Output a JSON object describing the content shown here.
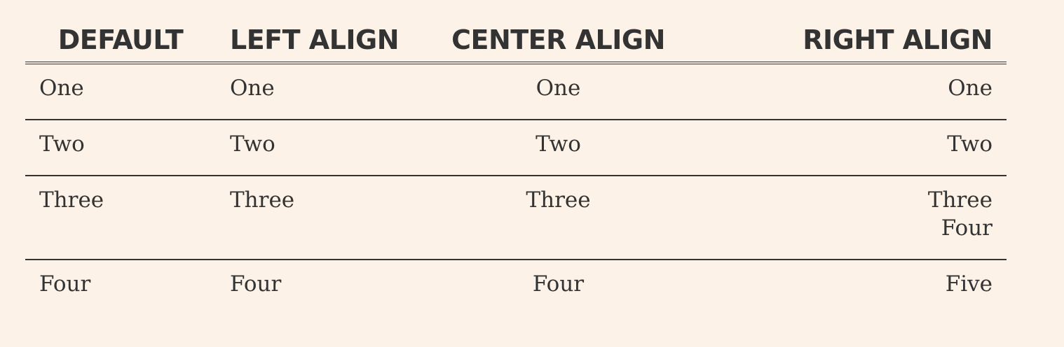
{
  "table": {
    "headers": [
      "DEFAULT",
      "LEFT ALIGN",
      "CENTER ALIGN",
      "RIGHT ALIGN"
    ],
    "rows": [
      {
        "default": "One",
        "left": "One",
        "center": "One",
        "right": [
          "One"
        ]
      },
      {
        "default": "Two",
        "left": "Two",
        "center": "Two",
        "right": [
          "Two"
        ]
      },
      {
        "default": "Three",
        "left": "Three",
        "center": "Three",
        "right": [
          "Three",
          "Four"
        ]
      },
      {
        "default": "Four",
        "left": "Four",
        "center": "Four",
        "right": [
          "Five"
        ]
      }
    ]
  },
  "colors": {
    "background": "#fcf2e7",
    "text": "#333333",
    "rule": "#333333"
  }
}
